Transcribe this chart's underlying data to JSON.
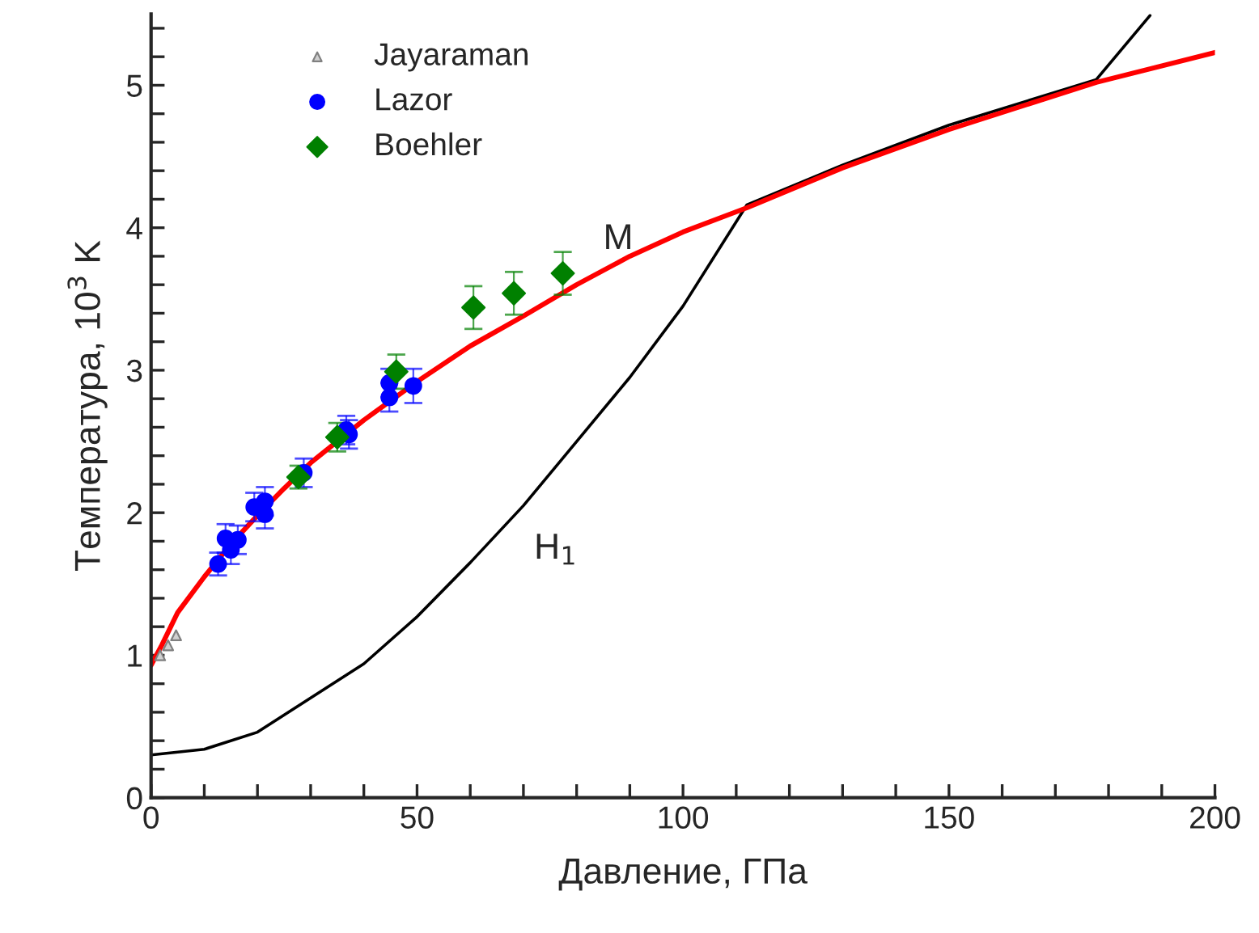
{
  "chart_data": {
    "type": "scatter",
    "xlabel": "Давление, ГПа",
    "ylabel": "Температура, 10$^{3}$ K",
    "xlim": [
      0,
      200
    ],
    "ylim": [
      0,
      5.5
    ],
    "xticks": [
      0,
      {
        "value": 10,
        "label": null
      },
      {
        "value": 20,
        "label": null
      },
      {
        "value": 30,
        "label": null
      },
      {
        "value": 40,
        "label": null
      },
      50,
      {
        "value": 60,
        "label": null
      },
      {
        "value": 70,
        "label": null
      },
      {
        "value": 80,
        "label": null
      },
      {
        "value": 90,
        "label": null
      },
      100,
      {
        "value": 110,
        "label": null
      },
      {
        "value": 120,
        "label": null
      },
      {
        "value": 130,
        "label": null
      },
      {
        "value": 140,
        "label": null
      },
      150,
      {
        "value": 160,
        "label": null
      },
      {
        "value": 170,
        "label": null
      },
      {
        "value": 180,
        "label": null
      },
      {
        "value": 190,
        "label": null
      },
      200
    ],
    "yticks": [
      0,
      {
        "value": 0.2,
        "label": null
      },
      {
        "value": 0.4,
        "label": null
      },
      {
        "value": 0.6,
        "label": null
      },
      {
        "value": 0.8,
        "label": null
      },
      1,
      {
        "value": 1.2,
        "label": null
      },
      {
        "value": 1.4,
        "label": null
      },
      {
        "value": 1.6,
        "label": null
      },
      {
        "value": 1.8,
        "label": null
      },
      2,
      {
        "value": 2.2,
        "label": null
      },
      {
        "value": 2.4,
        "label": null
      },
      {
        "value": 2.6,
        "label": null
      },
      {
        "value": 2.8,
        "label": null
      },
      3,
      {
        "value": 3.2,
        "label": null
      },
      {
        "value": 3.4,
        "label": null
      },
      {
        "value": 3.6,
        "label": null
      },
      {
        "value": 3.8,
        "label": null
      },
      4,
      {
        "value": 4.2,
        "label": null
      },
      {
        "value": 4.4,
        "label": null
      },
      {
        "value": 4.6,
        "label": null
      },
      {
        "value": 4.8,
        "label": null
      },
      5,
      {
        "value": 5.2,
        "label": null
      },
      {
        "value": 5.4,
        "label": null
      }
    ],
    "grid": false,
    "legend": "top left",
    "series": [
      {
        "type": "line",
        "color": "#000000",
        "x": [
          0,
          10,
          20,
          30,
          40,
          50,
          60,
          70,
          80,
          90,
          100,
          112,
          130,
          150,
          177.7,
          187.8
        ],
        "values": [
          0.3,
          0.34,
          0.46,
          0.7,
          0.94,
          1.27,
          1.65,
          2.05,
          2.5,
          2.95,
          3.45,
          4.16,
          4.44,
          4.72,
          5.04,
          5.49
        ]
      },
      {
        "type": "line",
        "color": "#ff0000",
        "x": [
          0,
          2,
          5,
          10,
          15,
          20,
          25,
          30,
          40,
          50,
          60,
          70,
          80,
          90,
          100,
          112,
          130,
          150,
          177.7,
          200
        ],
        "values": [
          0.93,
          1.07,
          1.3,
          1.55,
          1.78,
          1.98,
          2.17,
          2.35,
          2.65,
          2.92,
          3.17,
          3.38,
          3.6,
          3.8,
          3.97,
          4.14,
          4.42,
          4.69,
          5.02,
          5.23
        ]
      },
      {
        "name": "Jayaraman",
        "color": "#808080",
        "marker": "triangle",
        "x": [
          1.7,
          3.2,
          4.7
        ],
        "values": [
          1.0,
          1.07,
          1.14
        ]
      },
      {
        "name": "Lazor",
        "color": "#0000ff",
        "marker": "circle",
        "x": [
          12.6,
          14,
          15,
          16.3,
          19.4,
          21.4,
          21.4,
          28.7,
          36.7,
          37.2,
          44.8,
          44.8,
          49.3
        ],
        "values": [
          1.64,
          1.82,
          1.74,
          1.81,
          2.04,
          2.08,
          1.99,
          2.28,
          2.58,
          2.55,
          2.91,
          2.81,
          2.89
        ],
        "errors": [
          0.08,
          0.1,
          0.1,
          0.1,
          0.1,
          0.1,
          0.1,
          0.1,
          0.1,
          0.1,
          0.1,
          0.1,
          0.12
        ]
      },
      {
        "name": "Boehler",
        "color": "#008000",
        "marker": "diamond",
        "x": [
          27.7,
          35,
          46.1,
          60.6,
          68.2,
          77.4
        ],
        "values": [
          2.25,
          2.53,
          2.99,
          3.44,
          3.54,
          3.68
        ],
        "errors": [
          0.08,
          0.1,
          0.12,
          0.15,
          0.15,
          0.15
        ]
      }
    ],
    "annotations": [
      "M",
      "H$_{1}$"
    ]
  }
}
